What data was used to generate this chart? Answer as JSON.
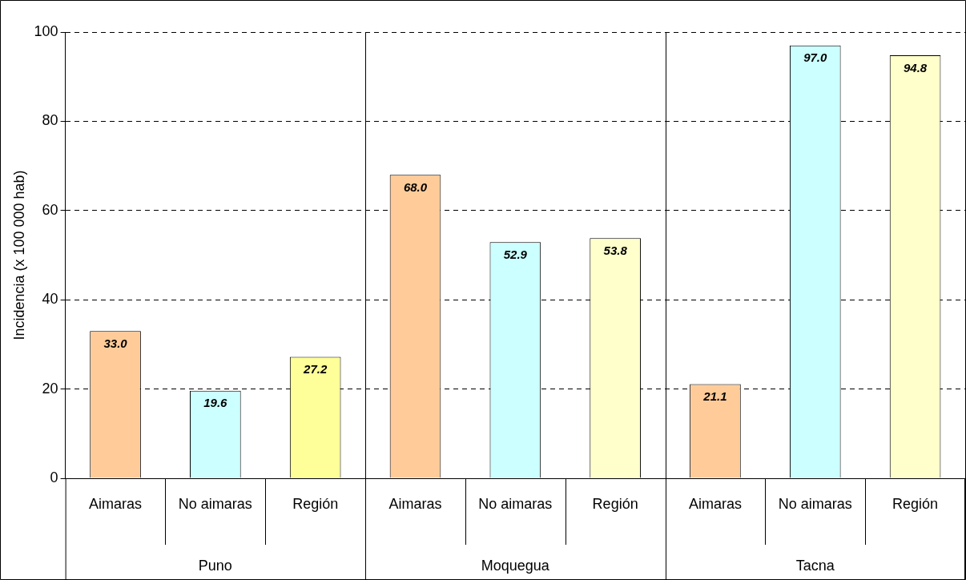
{
  "chart_data": {
    "type": "bar",
    "ylabel": "Incidencia (x 100 000 hab)",
    "categories": [
      "Puno",
      "Moquegua",
      "Tacna"
    ],
    "series": [
      {
        "name": "Aimaras",
        "colors": [
          "#ffcc99",
          "#ffcc99",
          "#ffcc99"
        ],
        "values": [
          33.0,
          68.0,
          21.1
        ],
        "value_labels": [
          "33.0",
          "68.0",
          "21.1"
        ]
      },
      {
        "name": "No aimaras",
        "colors": [
          "#ccffff",
          "#ccffff",
          "#ccffff"
        ],
        "values": [
          19.6,
          52.9,
          97.0
        ],
        "value_labels": [
          "19.6",
          "52.9",
          "97.0"
        ]
      },
      {
        "name": "Región",
        "colors": [
          "#ffff99",
          "#ffffcc",
          "#ffffcc"
        ],
        "values": [
          27.2,
          53.8,
          94.8
        ],
        "value_labels": [
          "27.2",
          "53.8",
          "94.8"
        ]
      }
    ],
    "ylim": [
      0,
      100
    ],
    "yticks": [
      0,
      20,
      40,
      60,
      80,
      100
    ],
    "grid": "y",
    "legend": false
  }
}
